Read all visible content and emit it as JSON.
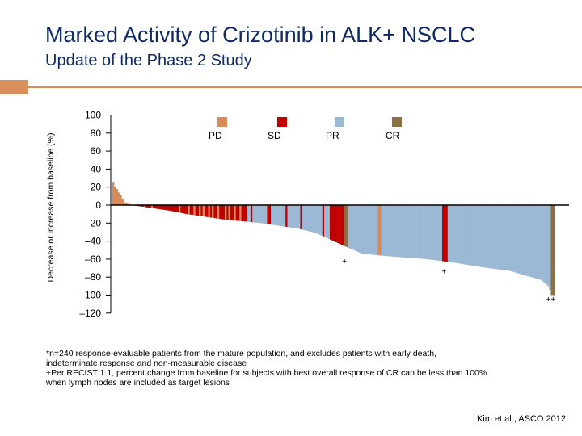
{
  "slide": {
    "title": "Marked Activity of Crizotinib in ALK+ NSCLC",
    "subtitle": "Update of the Phase 2 Study",
    "accent_color": "#d98f5c",
    "title_color": "#0f2a66"
  },
  "chart_data": {
    "type": "bar",
    "ylabel": "Decrease or increase from baseline (%)",
    "ylim": [
      -120,
      100
    ],
    "yticks": [
      100,
      80,
      60,
      40,
      20,
      0,
      -20,
      -40,
      -60,
      -80,
      -100,
      -120
    ],
    "ytick_labels": [
      "100",
      "80",
      "60",
      "40",
      "20",
      "0",
      "–20",
      "–40",
      "–60",
      "–80",
      "–100",
      "–120"
    ],
    "legend_position": "top",
    "categories": [
      {
        "key": "PD",
        "label": "PD",
        "color": "#d98a5a"
      },
      {
        "key": "SD",
        "label": "SD",
        "color": "#c00000"
      },
      {
        "key": "PR",
        "label": "PR",
        "color": "#9bb8d5"
      },
      {
        "key": "CR",
        "label": "CR",
        "color": "#8b7045"
      }
    ],
    "waterfall_profile": [
      [
        0,
        25
      ],
      [
        1,
        20
      ],
      [
        2,
        18
      ],
      [
        3,
        14
      ],
      [
        4,
        11
      ],
      [
        6,
        3
      ],
      [
        10,
        0
      ],
      [
        20,
        -3
      ],
      [
        30,
        -6
      ],
      [
        40,
        -10
      ],
      [
        50,
        -13
      ],
      [
        60,
        -16
      ],
      [
        70,
        -18
      ],
      [
        80,
        -20
      ],
      [
        90,
        -23
      ],
      [
        100,
        -26
      ],
      [
        110,
        -31
      ],
      [
        125,
        -45
      ],
      [
        135,
        -54
      ],
      [
        150,
        -57
      ],
      [
        170,
        -60
      ],
      [
        185,
        -64
      ],
      [
        200,
        -69
      ],
      [
        215,
        -73
      ],
      [
        225,
        -79
      ],
      [
        232,
        -83
      ],
      [
        236,
        -90
      ],
      [
        238,
        -98
      ],
      [
        240,
        -100
      ]
    ],
    "bar_overrides": {
      "PD": [
        0,
        1,
        2,
        3,
        4,
        5,
        6,
        7,
        8,
        9
      ],
      "SD": [
        4,
        5,
        11,
        13,
        14,
        15,
        16,
        18,
        19,
        20,
        22,
        23,
        24,
        25,
        26,
        27,
        28,
        29,
        30,
        31,
        32,
        33,
        34,
        35,
        37,
        38,
        39,
        40,
        42,
        43,
        45,
        46,
        48,
        50,
        51,
        53,
        55,
        56,
        58,
        59,
        60,
        62,
        64,
        65,
        67,
        68,
        70,
        71,
        72,
        75,
        84,
        85,
        94,
        102,
        114,
        118,
        119,
        120,
        121,
        122,
        123,
        124,
        125,
        179,
        180,
        181
      ],
      "CR": [
        126,
        127,
        238,
        239
      ]
    },
    "pd_accent_bars": [
      8,
      9,
      17,
      21,
      36,
      41,
      44,
      47,
      49,
      52,
      54,
      57,
      61,
      63,
      66,
      69,
      144,
      145
    ],
    "annotations": [
      {
        "text": "+",
        "x_index": 126,
        "y": -62
      },
      {
        "text": "+",
        "x_index": 180,
        "y": -73
      },
      {
        "text": "++",
        "x_index": 238,
        "y": -104
      }
    ],
    "n_bars": 240
  },
  "footnote": {
    "lines": [
      "*n=240 response-evaluable patients  from the mature population, and excludes patients with early death,",
      "indeterminate response and non-measurable disease",
      "+Per RECIST 1.1, percent change from baseline for subjects with best overall response of CR can be less than 100%",
      "when lymph nodes are included as target lesions"
    ]
  },
  "citation": "Kim et al., ASCO 2012"
}
